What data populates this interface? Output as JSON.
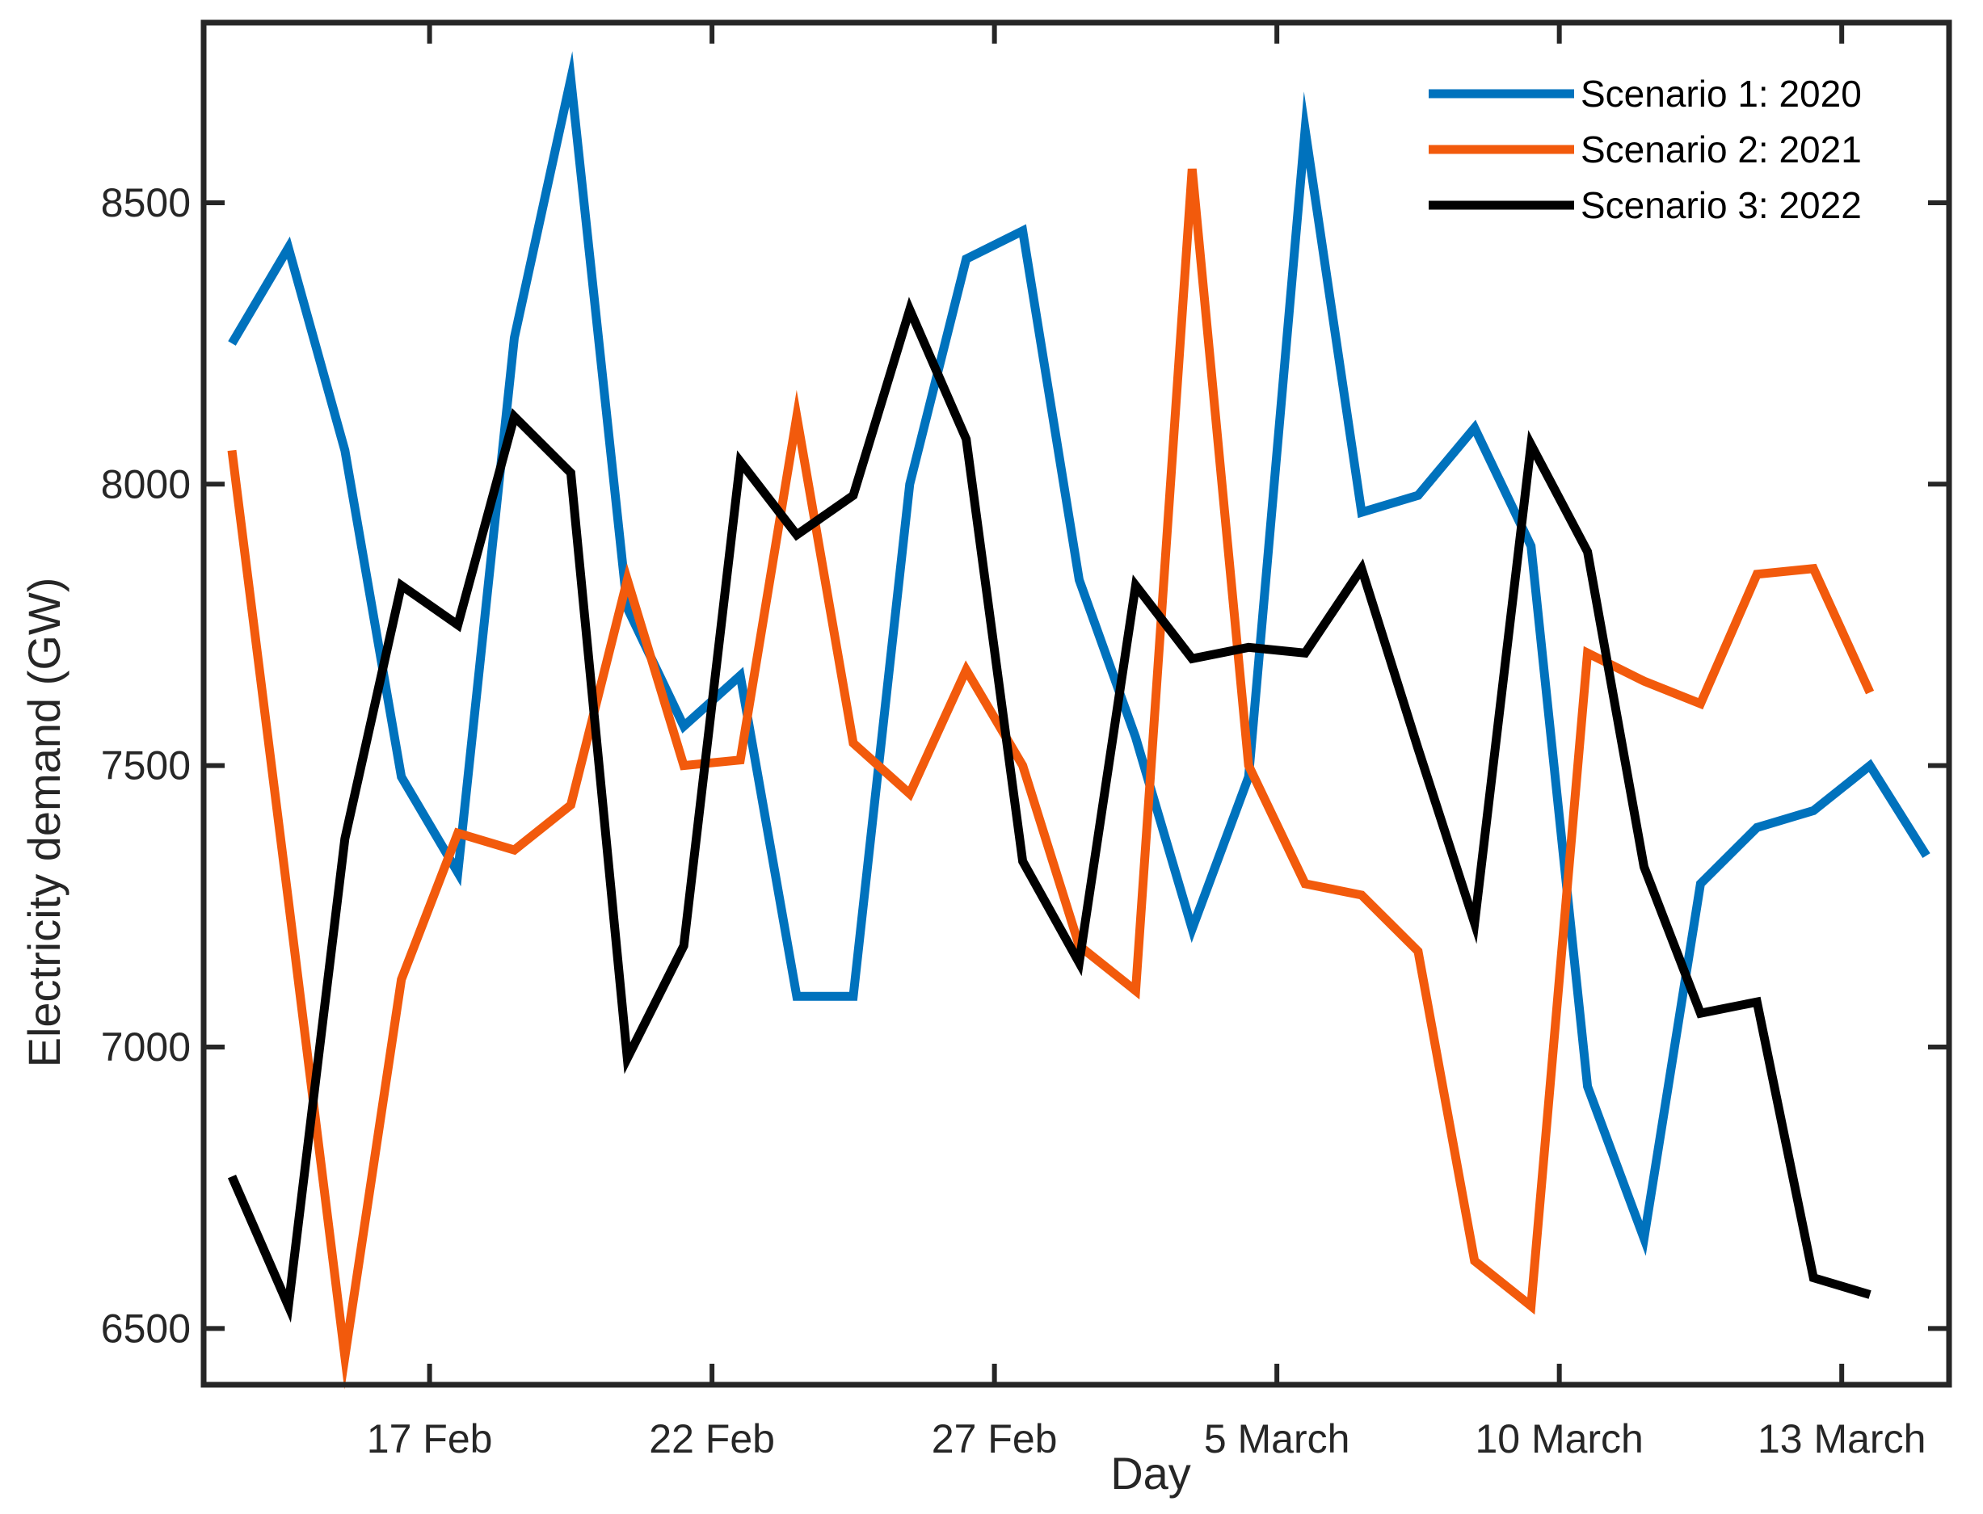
{
  "chart_data": {
    "type": "line",
    "title": "",
    "xlabel": "Day",
    "ylabel": "Electricity demand (GW)",
    "ylim": [
      6400,
      8820
    ],
    "xlim": [
      0,
      30.9
    ],
    "y_ticks": [
      6500,
      7000,
      7500,
      8000,
      8500
    ],
    "x_ticks": [
      {
        "x": 4,
        "label": "17 Feb"
      },
      {
        "x": 9,
        "label": "22 Feb"
      },
      {
        "x": 14,
        "label": "27 Feb"
      },
      {
        "x": 19,
        "label": "5 March"
      },
      {
        "x": 24,
        "label": "10 March"
      },
      {
        "x": 29,
        "label": "13 March"
      }
    ],
    "grid": false,
    "legend_position": "top-right",
    "series": [
      {
        "name": "Scenario 1: 2020",
        "color": "#0072BD",
        "x": [
          0.5,
          1.5,
          2.5,
          3.5,
          4.5,
          5.5,
          6.5,
          7.5,
          8.5,
          9.5,
          10.5,
          11.5,
          12.5,
          13.5,
          14.5,
          15.5,
          16.5,
          17.5,
          18.5,
          19.5,
          20.5,
          21.5,
          22.5,
          23.5,
          24.5,
          25.5,
          26.5,
          27.5,
          28.5,
          29.5,
          30.5
        ],
        "values": [
          8250,
          8420,
          8060,
          7480,
          7310,
          8260,
          8720,
          7780,
          7570,
          7660,
          7090,
          7090,
          8000,
          8400,
          8450,
          7830,
          7550,
          7210,
          7480,
          8630,
          7950,
          7980,
          8100,
          7890,
          6930,
          6660,
          7290,
          7390,
          7420,
          7500,
          7340
        ]
      },
      {
        "name": "Scenario 2: 2021",
        "color": "#F25A0C",
        "x": [
          0.5,
          1.5,
          2.5,
          3.5,
          4.5,
          5.5,
          6.5,
          7.5,
          8.5,
          9.5,
          10.5,
          11.5,
          12.5,
          13.5,
          14.5,
          15.5,
          16.5,
          17.5,
          18.5,
          19.5,
          20.5,
          21.5,
          22.5,
          23.5,
          24.5,
          25.5,
          26.5,
          27.5,
          28.5,
          29.5
        ],
        "values": [
          8060,
          7260,
          6450,
          7120,
          7380,
          7350,
          7430,
          7830,
          7500,
          7510,
          8120,
          7540,
          7450,
          7670,
          7500,
          7180,
          7100,
          8560,
          7500,
          7290,
          7270,
          7170,
          6620,
          6540,
          7700,
          7650,
          7610,
          7840,
          7850,
          7630
        ]
      },
      {
        "name": "Scenario 3: 2022",
        "color": "#000000",
        "x": [
          0.5,
          1.5,
          2.5,
          3.5,
          4.5,
          5.5,
          6.5,
          7.5,
          8.5,
          9.5,
          10.5,
          11.5,
          12.5,
          13.5,
          14.5,
          15.5,
          16.5,
          17.5,
          18.5,
          19.5,
          20.5,
          21.5,
          22.5,
          23.5,
          24.5,
          25.5,
          26.5,
          27.5,
          28.5,
          29.5
        ],
        "values": [
          6770,
          6540,
          7370,
          7820,
          7750,
          8120,
          8020,
          6980,
          7180,
          8040,
          7910,
          7980,
          8310,
          8080,
          7330,
          7150,
          7820,
          7690,
          7710,
          7700,
          7850,
          7530,
          7220,
          8070,
          7880,
          7320,
          7060,
          7080,
          6590,
          6560
        ]
      }
    ]
  }
}
